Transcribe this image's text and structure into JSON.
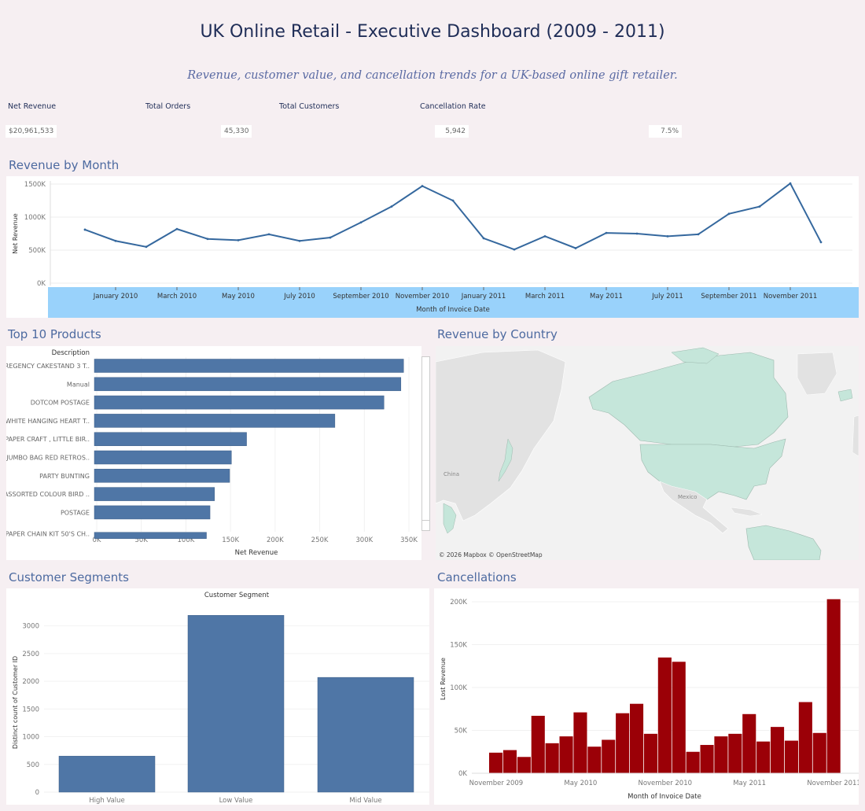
{
  "header": {
    "title": "UK Online Retail - Executive Dashboard (2009 - 2011)",
    "subtitle": "Revenue, customer value, and cancellation trends for a UK-based online gift retailer."
  },
  "kpis": [
    {
      "label": "Net Revenue",
      "value": "$20,961,533"
    },
    {
      "label": "Total Orders",
      "value": "45,330"
    },
    {
      "label": "Total Customers",
      "value": "5,942"
    },
    {
      "label": "Cancellation Rate",
      "value": "7.5%"
    }
  ],
  "sections": {
    "revenue_by_month": "Revenue by Month",
    "top_products": "Top 10 Products",
    "revenue_by_country": "Revenue by Country",
    "customer_segments": "Customer Segments",
    "cancellations": "Cancellations"
  },
  "map": {
    "credit": "© 2026 Mapbox © OpenStreetMap",
    "labels": [
      "Mexico",
      "China"
    ],
    "colors": {
      "highlight": "#c5e6da",
      "land": "#e2e2e2",
      "water": "#f2f2f2"
    }
  },
  "chart_data": [
    {
      "id": "revenue-line",
      "type": "line",
      "xlabel": "Month of Invoice Date",
      "ylabel": "Net Revenue",
      "ylim": [
        0,
        1500
      ],
      "yticks": [
        "0K",
        "500K",
        "1000K",
        "1500K"
      ],
      "xtick_labels": [
        "January 2010",
        "March 2010",
        "May 2010",
        "July 2010",
        "September 2010",
        "November 2010",
        "January 2011",
        "March 2011",
        "May 2011",
        "July 2011",
        "September 2011",
        "November 2011"
      ],
      "x": [
        "2009-12",
        "2010-01",
        "2010-02",
        "2010-03",
        "2010-04",
        "2010-05",
        "2010-06",
        "2010-07",
        "2010-08",
        "2010-09",
        "2010-10",
        "2010-11",
        "2010-12",
        "2011-01",
        "2011-02",
        "2011-03",
        "2011-04",
        "2011-05",
        "2011-06",
        "2011-07",
        "2011-08",
        "2011-09",
        "2011-10",
        "2011-11",
        "2011-12"
      ],
      "values": [
        810,
        640,
        550,
        820,
        670,
        650,
        740,
        640,
        690,
        920,
        1160,
        1470,
        1250,
        680,
        510,
        710,
        530,
        760,
        750,
        710,
        740,
        1050,
        1160,
        1510,
        620
      ],
      "colors": {
        "line": "#35689e",
        "axis_band": "#99d2fb"
      }
    },
    {
      "id": "top-products",
      "type": "bar",
      "orientation": "horizontal",
      "category_header": "Description",
      "xlabel": "Net Revenue",
      "xlim": [
        0,
        350
      ],
      "xticks": [
        "0K",
        "50K",
        "100K",
        "150K",
        "200K",
        "250K",
        "300K",
        "350K"
      ],
      "categories": [
        "REGENCY CAKESTAND 3 T..",
        "Manual",
        "DOTCOM POSTAGE",
        "WHITE HANGING HEART T..",
        "PAPER CRAFT , LITTLE BIR..",
        "JUMBO BAG RED RETROS..",
        "PARTY BUNTING",
        "ASSORTED COLOUR BIRD ..",
        "POSTAGE",
        "PAPER CHAIN KIT 50'S CH.."
      ],
      "values": [
        344,
        341,
        322,
        267,
        168,
        151,
        149,
        132,
        127,
        123
      ],
      "colors": {
        "bar": "#4f76a6"
      }
    },
    {
      "id": "customer-segments",
      "type": "bar",
      "title": "Customer Segment",
      "ylabel": "Distinct count of Customer ID",
      "ylim": [
        0,
        3250
      ],
      "yticks": [
        "0",
        "500",
        "1000",
        "1500",
        "2000",
        "2500",
        "3000"
      ],
      "categories": [
        "High Value",
        "Low Value",
        "Mid Value"
      ],
      "values": [
        650,
        3190,
        2070
      ],
      "colors": {
        "bar": "#4f76a6"
      }
    },
    {
      "id": "cancellations",
      "type": "bar",
      "xlabel": "Month of Invoice Date",
      "ylabel": "Lost Revenue",
      "ylim": [
        0,
        205
      ],
      "yticks": [
        "0K",
        "50K",
        "100K",
        "150K",
        "200K"
      ],
      "xtick_labels": [
        "November 2009",
        "May 2010",
        "November 2010",
        "May 2011",
        "November 2011"
      ],
      "x": [
        "2009-12",
        "2010-01",
        "2010-02",
        "2010-03",
        "2010-04",
        "2010-05",
        "2010-06",
        "2010-07",
        "2010-08",
        "2010-09",
        "2010-10",
        "2010-11",
        "2010-12",
        "2011-01",
        "2011-02",
        "2011-03",
        "2011-04",
        "2011-05",
        "2011-06",
        "2011-07",
        "2011-08",
        "2011-09",
        "2011-10",
        "2011-11",
        "2011-12"
      ],
      "values": [
        24,
        27,
        19,
        67,
        35,
        43,
        71,
        31,
        39,
        70,
        81,
        46,
        135,
        130,
        25,
        33,
        43,
        46,
        69,
        37,
        54,
        38,
        83,
        47,
        203
      ],
      "colors": {
        "bar": "#9b0007"
      }
    }
  ]
}
